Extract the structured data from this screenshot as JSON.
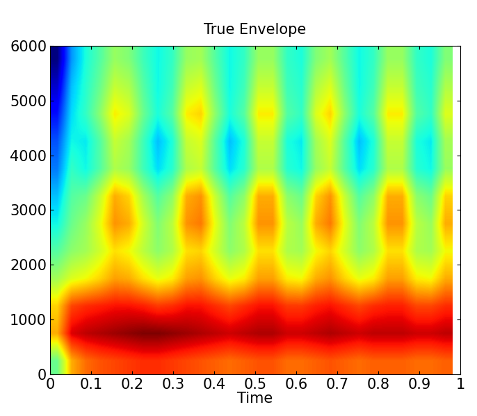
{
  "chart_data": {
    "type": "heatmap",
    "title": "True Envelope",
    "x_label": "Time",
    "xlim": [
      0,
      1
    ],
    "xticks": [
      0,
      0.1,
      0.2,
      0.3,
      0.4,
      0.5,
      0.6,
      0.7,
      0.8,
      0.9,
      1
    ],
    "ylim": [
      0,
      6000
    ],
    "yticks": [
      0,
      1000,
      2000,
      3000,
      4000,
      5000,
      6000
    ],
    "grid": false,
    "x_range": [
      0,
      0.98
    ],
    "y_range": [
      0,
      6000
    ],
    "cells": [
      [
        6,
        7.8,
        8.3,
        8.5,
        8.6,
        8.7,
        8.8,
        8.8,
        8.7,
        8.6,
        8.5,
        8.4,
        8.3,
        8.4,
        8.5,
        8.5,
        8.3,
        8.3,
        8.4,
        8.5,
        8.4,
        8.3,
        8.4,
        8.4,
        8.4,
        8.3,
        8.3,
        8.4
      ],
      [
        7.8,
        9.2,
        9.4,
        9.5,
        9.6,
        9.7,
        9.8,
        9.8,
        9.7,
        9.6,
        9.5,
        9.4,
        9.3,
        9.4,
        9.5,
        9.5,
        9.3,
        9.3,
        9.4,
        9.5,
        9.4,
        9.3,
        9.4,
        9.4,
        9.4,
        9.3,
        9.3,
        9.4
      ],
      [
        7.5,
        8.6,
        8.8,
        8.9,
        9,
        9,
        8.9,
        8.7,
        8.8,
        9,
        9,
        8.8,
        8.6,
        8.8,
        9,
        9,
        8.7,
        8.7,
        8.9,
        9,
        8.8,
        8.6,
        8.8,
        8.9,
        8.9,
        8.6,
        8.6,
        8.8
      ],
      [
        6.5,
        7,
        7.2,
        7.5,
        7.9,
        7.8,
        7.4,
        7.1,
        7.3,
        7.9,
        8,
        7.5,
        7.1,
        7.3,
        7.9,
        7.9,
        7.3,
        7.2,
        7.8,
        8,
        7.5,
        7.1,
        7.3,
        7.9,
        7.9,
        7.3,
        7.2,
        7.8
      ],
      [
        5.8,
        6.3,
        6.5,
        6.9,
        7.4,
        7.2,
        6.7,
        6.3,
        6.6,
        7.4,
        7.5,
        6.9,
        6.3,
        6.6,
        7.4,
        7.4,
        6.6,
        6.5,
        7.2,
        7.5,
        6.9,
        6.3,
        6.6,
        7.4,
        7.4,
        6.6,
        6.5,
        7.2
      ],
      [
        5.2,
        6,
        6.4,
        7.1,
        8,
        7.8,
        6.9,
        6.2,
        6.7,
        8,
        8.2,
        7.1,
        6.2,
        6.7,
        8,
        8,
        6.7,
        6.4,
        7.8,
        8.2,
        7.1,
        6.2,
        6.7,
        8,
        8,
        6.7,
        6.4,
        7.8
      ],
      [
        4.8,
        5.8,
        6,
        6.8,
        7.8,
        7.5,
        6.5,
        5.8,
        6.3,
        7.8,
        8,
        6.8,
        5.8,
        6.3,
        7.8,
        7.8,
        6.3,
        6,
        7.5,
        8,
        6.8,
        5.8,
        6.3,
        7.8,
        7.8,
        6.3,
        6,
        7.5
      ],
      [
        4.3,
        5.5,
        5.2,
        5.8,
        6.6,
        6.4,
        5.6,
        5,
        5.4,
        6.6,
        6.8,
        5.8,
        5,
        5.4,
        6.6,
        6.6,
        5.4,
        5.2,
        6.4,
        6.8,
        5.8,
        5,
        5.4,
        6.6,
        6.6,
        5.4,
        5.2,
        6.4
      ],
      [
        4,
        5.2,
        5.1,
        5.8,
        6.8,
        6.5,
        5.6,
        4.8,
        5.3,
        6.8,
        7,
        5.8,
        4.8,
        5.3,
        6.8,
        6.8,
        5.3,
        5.1,
        6.5,
        7,
        5.8,
        4.8,
        5.3,
        6.8,
        6.8,
        5.3,
        5.1,
        6.5
      ],
      [
        3.5,
        5,
        5.5,
        6.3,
        7.3,
        7,
        6,
        5.3,
        5.8,
        7.3,
        7.5,
        6.3,
        5.3,
        5.8,
        7.3,
        7.3,
        5.8,
        5.5,
        7,
        7.5,
        6.3,
        5.3,
        5.8,
        7.3,
        7.3,
        5.8,
        5.5,
        7
      ],
      [
        3,
        4.8,
        5.4,
        6,
        6.8,
        6.6,
        5.8,
        5.2,
        5.6,
        6.8,
        7,
        6,
        5.2,
        5.6,
        6.8,
        6.8,
        5.6,
        5.4,
        6.6,
        7,
        6,
        5.2,
        5.6,
        6.8,
        6.8,
        5.6,
        5.4,
        6.6
      ],
      [
        2.5,
        4.5,
        5.3,
        5.8,
        6.4,
        6.2,
        5.6,
        5.2,
        5.5,
        6.4,
        6.5,
        5.8,
        5.2,
        5.5,
        6.4,
        6.4,
        5.5,
        5.3,
        6.2,
        6.5,
        5.8,
        5.2,
        5.5,
        6.4,
        6.4,
        5.5,
        5.3,
        6.2
      ]
    ]
  }
}
